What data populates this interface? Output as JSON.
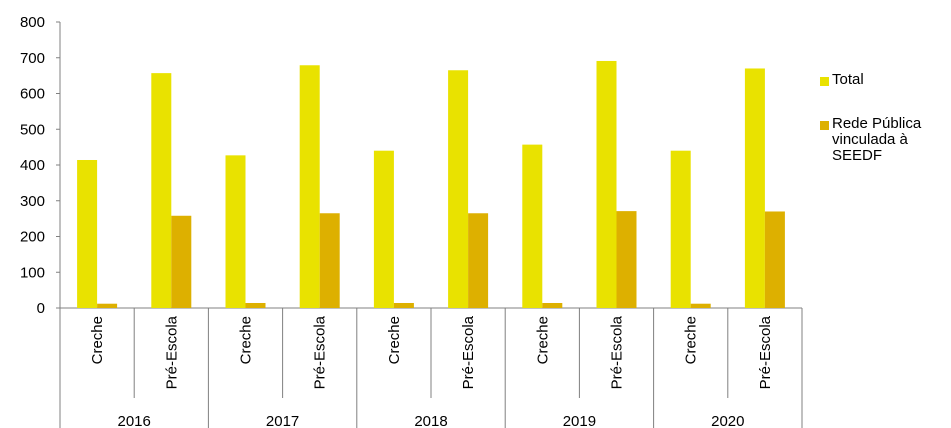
{
  "chart_data": {
    "type": "bar",
    "groups": [
      "2016",
      "2017",
      "2018",
      "2019",
      "2020"
    ],
    "categories": [
      "Creche",
      "Pré-Escola",
      "Creche",
      "Pré-Escola",
      "Creche",
      "Pré-Escola",
      "Creche",
      "Pré-Escola",
      "Creche",
      "Pré-Escola"
    ],
    "series": [
      {
        "name": "Total",
        "color": "#e9e200",
        "values": [
          414,
          657,
          427,
          679,
          440,
          665,
          457,
          691,
          440,
          670
        ]
      },
      {
        "name": "Rede Pública vinculada à SEEDF",
        "color": "#ddb000",
        "values": [
          12,
          258,
          14,
          265,
          14,
          265,
          14,
          271,
          12,
          270
        ]
      }
    ],
    "yticks": [
      "0",
      "100",
      "200",
      "300",
      "400",
      "500",
      "600",
      "700",
      "800"
    ],
    "ylim": [
      0,
      800
    ],
    "grid": false,
    "legend_position": "right"
  }
}
